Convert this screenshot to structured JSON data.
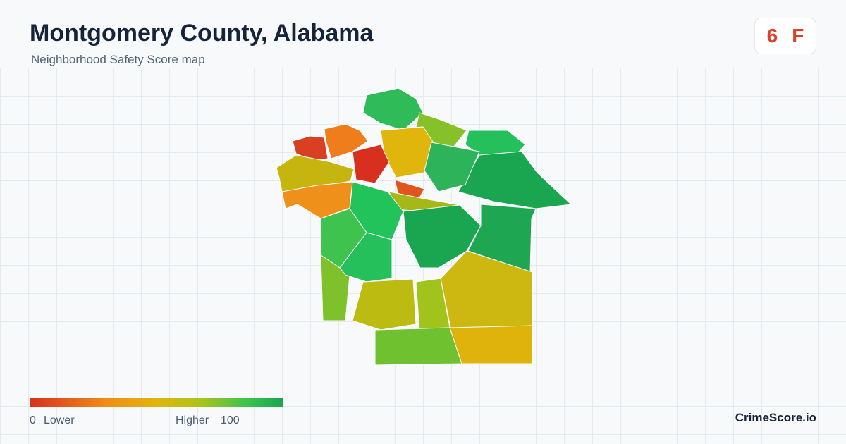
{
  "header": {
    "title": "Montgomery County, Alabama",
    "subtitle": "Neighborhood Safety Score map"
  },
  "badge": {
    "score": 6,
    "grade": "F"
  },
  "legend": {
    "min": 0,
    "min_label": "Lower",
    "max_label": "Higher",
    "max": 100
  },
  "footer": {
    "brand": "CrimeScore.io"
  }
}
